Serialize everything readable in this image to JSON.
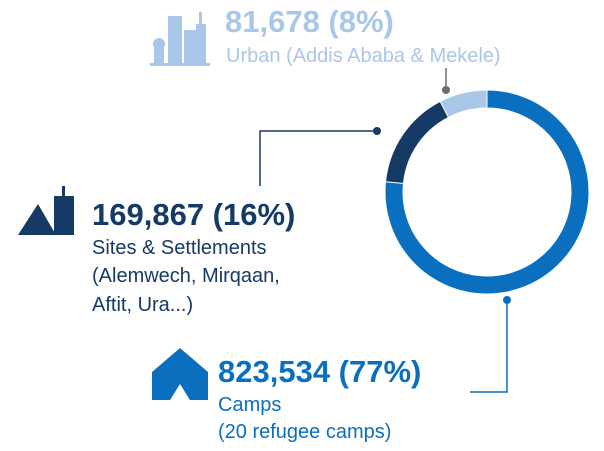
{
  "chart_data": {
    "type": "pie",
    "donut": true,
    "categories": [
      "Urban (Addis Ababa & Mekele)",
      "Sites & Settlements",
      "Camps"
    ],
    "notes": [
      null,
      "(Alemwech, Mirqaan, Aftit, Ura...)",
      "(20 refugee camps)"
    ],
    "values": [
      81678,
      169867,
      823534
    ],
    "value_labels": [
      "81,678 (8%)",
      "169,867 (16%)",
      "823,534 (77%)"
    ],
    "colors": [
      "#a9c7e9",
      "#163a66",
      "#0b6fbf"
    ]
  }
}
